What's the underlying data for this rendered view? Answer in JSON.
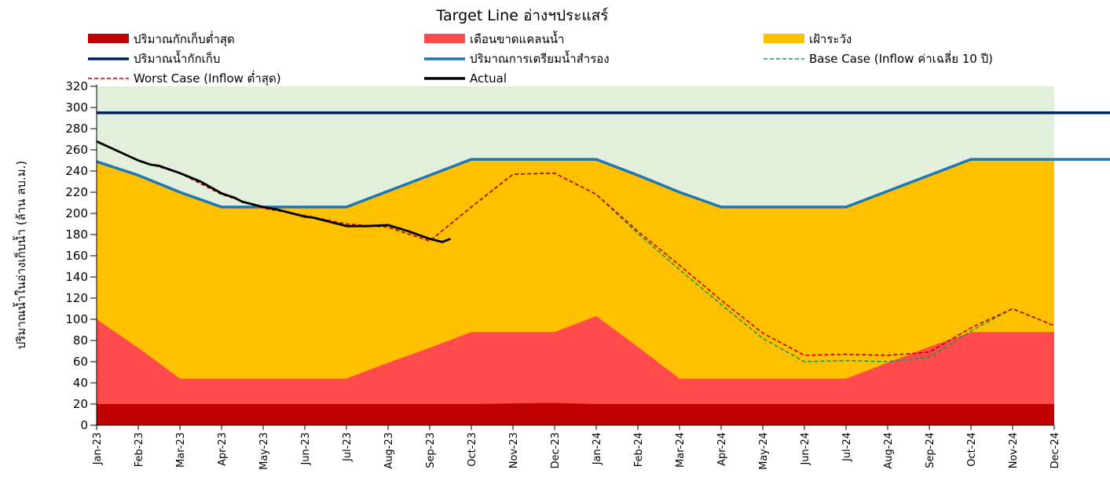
{
  "chart_data": {
    "type": "area",
    "title": "Target Line อ่างฯประแสร์",
    "ylabel": "ปริมาณน้ำในอ่างเก็บน้ำ (ล้าน ลบ.ม.)",
    "xlabel": "",
    "ylim": [
      0,
      320
    ],
    "ytick_step": 20,
    "grid": false,
    "categories": [
      "Jan-23",
      "Feb-23",
      "Mar-23",
      "Apr-23",
      "May-23",
      "Jun-23",
      "Jul-23",
      "Aug-23",
      "Sep-23",
      "Oct-23",
      "Nov-23",
      "Dec-23",
      "Jan-24",
      "Feb-24",
      "Mar-24",
      "Apr-24",
      "May-24",
      "Jun-24",
      "Jul-24",
      "Aug-24",
      "Sep-24",
      "Oct-24",
      "Nov-24",
      "Dec-24"
    ],
    "colors": {
      "background_zone": "#e2efda",
      "min_storage": "#c00000",
      "shortage_warning": "#ff4b4b",
      "watch": "#ffc000",
      "capacity": "#002060",
      "reserve": "#1f77b4",
      "base_case": "#1a9850",
      "worst_case": "#c00000",
      "actual": "#000000"
    },
    "legend": [
      {
        "key": "min_storage",
        "label": "ปริมาณกักเก็บต่ำสุด",
        "style": "box"
      },
      {
        "key": "shortage_warning",
        "label": "เตือนขาดแคลนน้ำ",
        "style": "box"
      },
      {
        "key": "watch",
        "label": "เฝ้าระวัง",
        "style": "box"
      },
      {
        "key": "capacity",
        "label": "ปริมาณน้ำกักเก็บ",
        "style": "line"
      },
      {
        "key": "reserve",
        "label": "ปริมาณการเตรียมน้ำสำรอง",
        "style": "line"
      },
      {
        "key": "base_case",
        "label": "Base Case (Inflow ค่าเฉลี่ย 10 ปี)",
        "style": "dash"
      },
      {
        "key": "worst_case",
        "label": "Worst Case (Inflow ต่ำสุด)",
        "style": "dash"
      },
      {
        "key": "actual",
        "label": "Actual",
        "style": "line"
      }
    ],
    "series": [
      {
        "key": "min_storage",
        "name": "ปริมาณกักเก็บต่ำสุด",
        "type": "area",
        "x": [
          0,
          1,
          2,
          3,
          4,
          5,
          6,
          7,
          8,
          9,
          10,
          11,
          12,
          13,
          14,
          15,
          16,
          17,
          18,
          19,
          20,
          21,
          22,
          23
        ],
        "values": [
          20,
          20,
          20,
          20,
          20,
          20,
          20,
          20,
          20,
          20,
          20.5,
          21,
          20,
          20,
          20,
          20,
          20,
          20,
          20,
          20,
          20,
          20,
          20,
          20
        ]
      },
      {
        "key": "shortage_warning",
        "name": "เตือนขาดแคลนน้ำ",
        "type": "area",
        "x": [
          0,
          1,
          2,
          3,
          4,
          5,
          6,
          7,
          8,
          9,
          10,
          11,
          12,
          13,
          14,
          15,
          16,
          17,
          18,
          19,
          20,
          21,
          22,
          23
        ],
        "values": [
          100,
          73,
          44,
          44,
          44,
          44,
          44,
          59,
          73,
          88,
          88,
          88,
          103,
          74,
          44,
          44,
          44,
          44,
          44,
          59,
          74,
          88,
          88,
          88
        ]
      },
      {
        "key": "watch",
        "name": "เฝ้าระวัง",
        "type": "area",
        "x": [
          0,
          1,
          2,
          3,
          4,
          5,
          6,
          7,
          8,
          9,
          10,
          11,
          12,
          13,
          14,
          15,
          16,
          17,
          18,
          19,
          20,
          21,
          22,
          23
        ],
        "values": [
          249,
          236,
          220,
          206,
          206,
          206,
          206,
          221,
          236,
          251,
          251,
          251,
          251,
          236,
          220,
          206,
          206,
          206,
          206,
          221,
          236,
          251,
          251,
          251
        ]
      },
      {
        "key": "capacity",
        "name": "ปริมาณน้ำกักเก็บ",
        "type": "line",
        "x": [
          0,
          23
        ],
        "values": [
          295,
          295
        ]
      },
      {
        "key": "reserve",
        "name": "ปริมาณการเตรียมน้ำสำรอง",
        "type": "line",
        "x": [
          0,
          1,
          2,
          3,
          4,
          5,
          6,
          7,
          8,
          9,
          10,
          11,
          12,
          13,
          14,
          15,
          16,
          17,
          18,
          19,
          20,
          21,
          22,
          23
        ],
        "values": [
          249,
          236,
          220,
          206,
          206,
          206,
          206,
          221,
          236,
          251,
          251,
          251,
          251,
          236,
          220,
          206,
          206,
          206,
          206,
          221,
          236,
          251,
          251,
          251
        ]
      },
      {
        "key": "base_case",
        "name": "Base Case (Inflow ค่าเฉลี่ย 10 ปี)",
        "type": "dash",
        "x": [
          0,
          1,
          2,
          3,
          4,
          5,
          6,
          7,
          8,
          9,
          10,
          11,
          12,
          13,
          14,
          15,
          16,
          17,
          18,
          19,
          20,
          21,
          22,
          23
        ],
        "values": [
          268,
          250,
          238,
          218,
          205,
          198,
          190,
          187,
          174,
          206,
          237,
          238,
          218,
          181,
          147,
          114,
          82,
          60,
          61,
          60,
          64,
          89,
          110,
          94
        ]
      },
      {
        "key": "worst_case",
        "name": "Worst Case (Inflow ต่ำสุด)",
        "type": "dash",
        "x": [
          0,
          1,
          2,
          3,
          4,
          5,
          6,
          7,
          8,
          9,
          10,
          11,
          12,
          13,
          14,
          15,
          16,
          17,
          18,
          19,
          20,
          21,
          22,
          23
        ],
        "values": [
          268,
          250,
          238,
          218,
          205,
          198,
          190,
          187,
          174,
          206,
          237,
          238,
          218,
          183,
          151,
          118,
          87,
          66,
          67,
          66,
          69,
          92,
          110,
          94
        ]
      },
      {
        "key": "actual",
        "name": "Actual",
        "type": "line",
        "x": [
          0,
          0.5,
          1,
          1.3,
          1.5,
          2,
          2.5,
          3,
          3.3,
          3.5,
          4,
          4.3,
          4.5,
          5,
          5.2,
          5.5,
          6,
          6.5,
          7,
          7.5,
          8,
          8.3,
          8.5
        ],
        "values": [
          268,
          259,
          250,
          246,
          245,
          238,
          230,
          219,
          215,
          211,
          206,
          204,
          202,
          197,
          196,
          193,
          188,
          188,
          189,
          183,
          176,
          173,
          176
        ]
      }
    ]
  }
}
